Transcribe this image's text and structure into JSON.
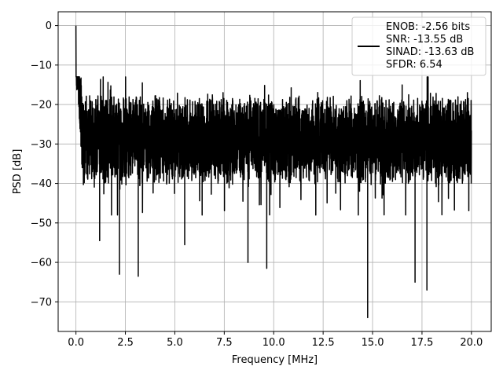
{
  "chart_data": {
    "type": "line",
    "title": "",
    "xlabel": "Frequency [MHz]",
    "ylabel": "PSD [dB]",
    "xlim": [
      -0.9,
      21.0
    ],
    "ylim": [
      -77.5,
      3.5
    ],
    "xticks": [
      0.0,
      2.5,
      5.0,
      7.5,
      10.0,
      12.5,
      15.0,
      17.5,
      20.0
    ],
    "xtick_labels": [
      "0.0",
      "2.5",
      "5.0",
      "7.5",
      "10.0",
      "12.5",
      "15.0",
      "17.5",
      "20.0"
    ],
    "yticks": [
      0,
      -10,
      -20,
      -30,
      -40,
      -50,
      -60,
      -70
    ],
    "ytick_labels": [
      "0",
      "−10",
      "−20",
      "−30",
      "−40",
      "−50",
      "−60",
      "−70"
    ],
    "grid": true,
    "legend_position": "top-right",
    "series": [
      {
        "color": "#000000",
        "style": "noisy power spectral density trace, dense fluctuation between about -40 and -20 dB",
        "legend_lines": [
          "ENOB: -2.56 bits",
          "SNR: -13.55 dB",
          "SINAD: -13.63 dB",
          "SFDR: 6.54"
        ],
        "x": [
          0.0,
          0.02,
          0.05,
          0.1,
          0.2,
          0.3,
          0.5,
          0.75,
          1.0,
          1.2,
          1.5,
          2.0,
          2.2,
          2.5,
          3.0,
          3.15,
          3.5,
          4.0,
          4.5,
          5.0,
          5.5,
          6.0,
          6.5,
          7.0,
          7.5,
          8.0,
          8.7,
          9.0,
          9.5,
          9.65,
          10.0,
          10.5,
          11.0,
          11.5,
          12.0,
          12.5,
          13.0,
          13.5,
          14.0,
          14.5,
          14.75,
          15.0,
          15.5,
          16.0,
          16.5,
          17.0,
          17.15,
          17.5,
          17.75,
          18.0,
          18.5,
          19.0,
          19.5,
          20.0
        ],
        "y": [
          0.0,
          -8.0,
          -12.0,
          -16.0,
          -22.0,
          -26.0,
          -28.0,
          -29.0,
          -30.0,
          -54.5,
          -30.0,
          -31.0,
          -63.0,
          -30.0,
          -30.0,
          -63.5,
          -30.0,
          -30.0,
          -30.0,
          -30.0,
          -55.5,
          -30.0,
          -30.0,
          -30.0,
          -30.0,
          -30.0,
          -60.0,
          -30.0,
          -30.0,
          -61.5,
          -30.0,
          -30.0,
          -30.0,
          -30.0,
          -30.0,
          -30.0,
          -30.0,
          -30.0,
          -30.0,
          -30.0,
          -74.0,
          -30.0,
          -30.0,
          -30.0,
          -30.0,
          -30.0,
          -65.0,
          -30.0,
          -67.0,
          -30.0,
          -30.0,
          -30.0,
          -30.0,
          -30.0
        ]
      }
    ]
  }
}
